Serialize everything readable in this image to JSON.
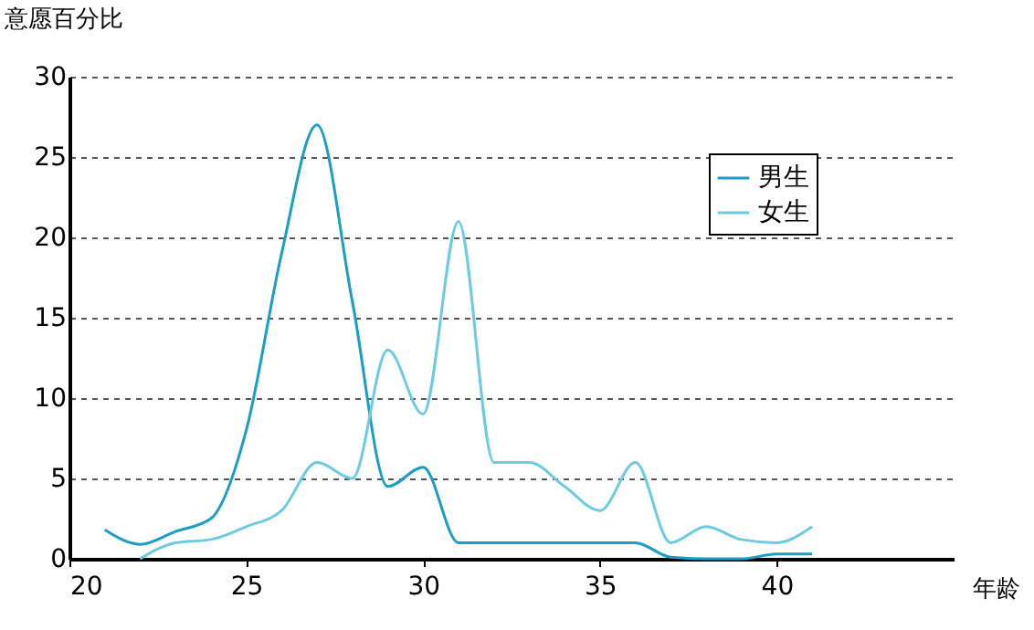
{
  "chart_data": {
    "type": "line",
    "xlabel": "年龄",
    "ylabel": "意愿百分比",
    "x": [
      21,
      22,
      23,
      24,
      25,
      26,
      27,
      28,
      29,
      30,
      31,
      32,
      33,
      34,
      35,
      36,
      37,
      38,
      39,
      40,
      41
    ],
    "series": [
      {
        "name": "男生",
        "color": "#1b9dc4",
        "values": [
          1.8,
          0.9,
          1.7,
          2.5,
          8,
          19,
          27,
          16,
          4.5,
          5.7,
          1,
          1,
          1,
          1,
          1,
          1,
          0.1,
          0,
          0,
          0.3,
          0.3
        ]
      },
      {
        "name": "女生",
        "color": "#6ccbe0",
        "values": [
          null,
          0,
          1,
          1.2,
          2,
          3,
          6,
          5,
          13,
          9,
          21,
          6,
          6,
          4.5,
          3,
          6,
          1,
          2,
          1.2,
          1,
          2
        ]
      }
    ],
    "xlim": [
      20,
      45
    ],
    "xticks": [
      20,
      25,
      30,
      35,
      40
    ],
    "ylim": [
      0,
      30
    ],
    "yticks": [
      0,
      5,
      10,
      15,
      20,
      25,
      30
    ],
    "grid": "y",
    "legend": "top right",
    "marker": "none",
    "line_style": "solid"
  }
}
